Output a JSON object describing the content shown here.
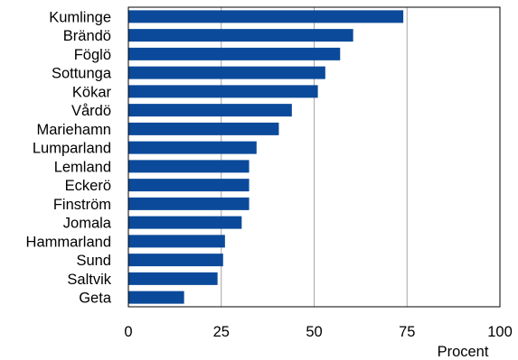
{
  "chart_data": {
    "type": "bar",
    "orientation": "horizontal",
    "categories": [
      "Kumlinge",
      "Brändö",
      "Föglö",
      "Sottunga",
      "Kökar",
      "Vårdö",
      "Mariehamn",
      "Lumparland",
      "Lemland",
      "Eckerö",
      "Finström",
      "Jomala",
      "Hammarland",
      "Sund",
      "Saltvik",
      "Geta"
    ],
    "values": [
      74,
      60.5,
      57,
      53,
      51,
      44,
      40.5,
      34.5,
      32.5,
      32.5,
      32.5,
      30.5,
      26,
      25.5,
      24,
      15
    ],
    "xlabel": "Procent",
    "ylabel": "",
    "xlim": [
      0,
      100
    ],
    "xticks": [
      0,
      25,
      50,
      75,
      100
    ],
    "grid": "vertical",
    "bar_color": "#0B4A9A",
    "gridline_color": "#A6A6A6",
    "frame_color": "#000000"
  }
}
